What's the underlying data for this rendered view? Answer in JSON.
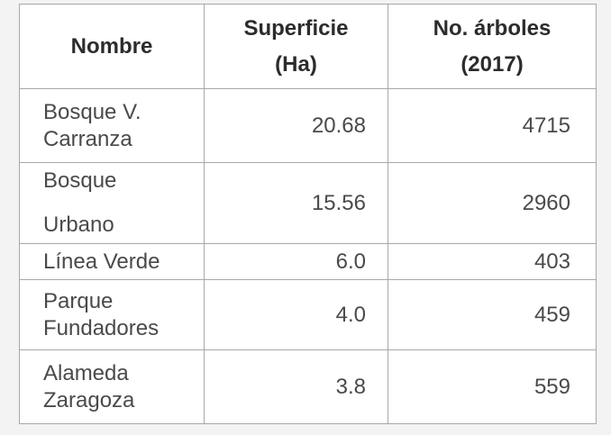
{
  "table": {
    "headers": {
      "nombre": "Nombre",
      "superficie_line1": "Superficie",
      "superficie_line2": "(Ha)",
      "arboles_line1": "No. árboles",
      "arboles_line2": "(2017)"
    },
    "rows": [
      {
        "nombre_line1": "Bosque V.",
        "nombre_line2": "Carranza",
        "superficie": "20.68",
        "arboles": "4715"
      },
      {
        "nombre_line1": "Bosque",
        "nombre_line2": "Urbano",
        "superficie": "15.56",
        "arboles": "2960"
      },
      {
        "nombre_line1": "Línea Verde",
        "nombre_line2": "",
        "superficie": "6.0",
        "arboles": "403"
      },
      {
        "nombre_line1": "Parque",
        "nombre_line2": "Fundadores",
        "superficie": "4.0",
        "arboles": "459"
      },
      {
        "nombre_line1": "Alameda",
        "nombre_line2": "Zaragoza",
        "superficie": "3.8",
        "arboles": "559"
      }
    ]
  }
}
